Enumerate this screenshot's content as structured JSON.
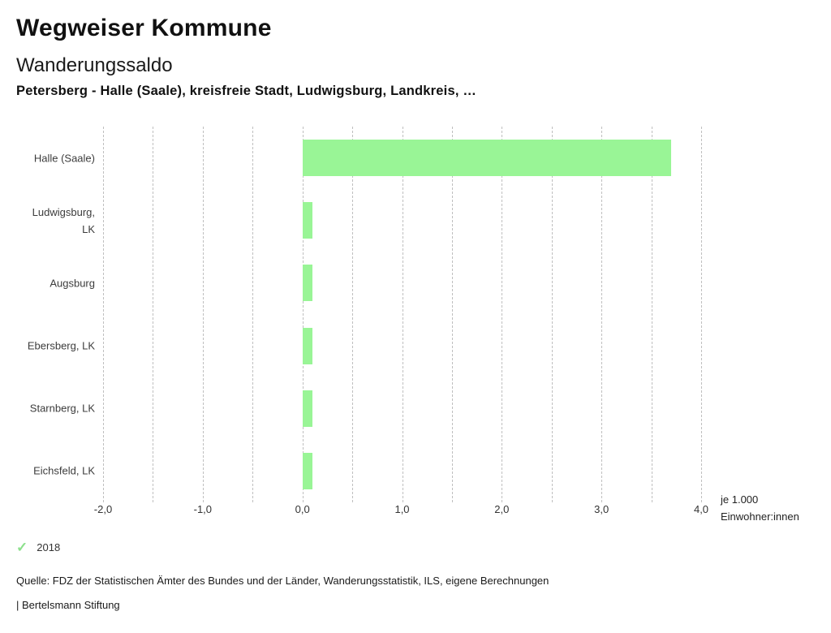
{
  "header": {
    "title": "Wegweiser Kommune",
    "subtitle": "Wanderungssaldo",
    "selection": "Petersberg - Halle (Saale), kreisfreie Stadt, Ludwigsburg, Landkreis, …"
  },
  "chart_data": {
    "type": "bar",
    "orientation": "horizontal",
    "title": "Wanderungssaldo",
    "categories": [
      "Halle (Saale)",
      "Ludwigsburg, LK",
      "Augsburg",
      "Ebersberg, LK",
      "Starnberg, LK",
      "Eichsfeld, LK"
    ],
    "series": [
      {
        "name": "2018",
        "values": [
          3.7,
          0.1,
          0.1,
          0.1,
          0.1,
          0.1
        ]
      }
    ],
    "xlim": [
      -2.0,
      4.0
    ],
    "gridline_step": 0.5,
    "grid": true,
    "x_tick_values": [
      -2,
      -1,
      0,
      1,
      2,
      3,
      4
    ],
    "x_tick_labels": [
      "-2,0",
      "-1,0",
      "0,0",
      "1,0",
      "2,0",
      "3,0",
      "4,0"
    ],
    "xlabel_line1": "je 1.000",
    "xlabel_line2": "Einwohner:innen",
    "legend_position": "bottom-left",
    "legend_entries": [
      "2018"
    ]
  },
  "colors": {
    "bar": "#99f596",
    "legend_check": "#8ce08c",
    "gridline": "#bfbfbf"
  },
  "legend": {
    "check_icon": "✓",
    "label": "2018"
  },
  "footer": {
    "source": "Quelle: FDZ der Statistischen Ämter des Bundes und der Länder, Wanderungsstatistik, ILS, eigene Berechnungen",
    "attribution": "| Bertelsmann Stiftung"
  }
}
